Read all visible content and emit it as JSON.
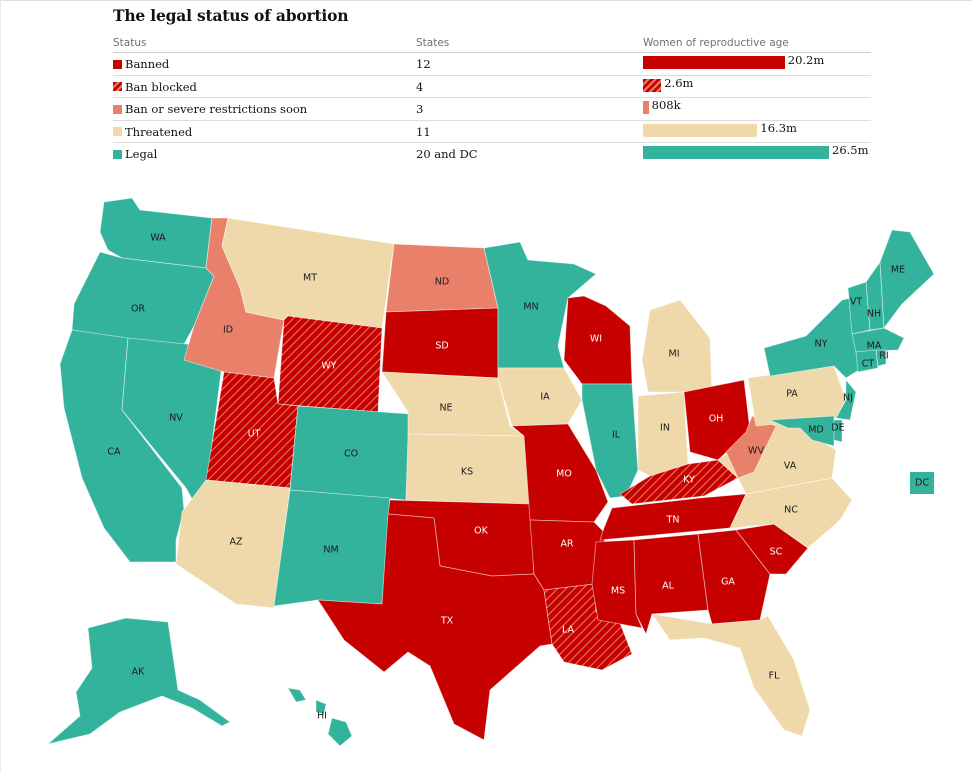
{
  "title": "The legal status of abortion",
  "table": {
    "headers": {
      "status": "Status",
      "states": "States",
      "women": "Women of reproductive age"
    },
    "rows": [
      {
        "status": "Banned",
        "states": "12",
        "women_label": "20.2m",
        "women_millions": 20.2,
        "color": "#c70000",
        "pattern": "solid"
      },
      {
        "status": "Ban blocked",
        "states": "4",
        "women_label": "2.6m",
        "women_millions": 2.6,
        "color": "#c70000",
        "pattern": "hatched"
      },
      {
        "status": "Ban or severe restrictions soon",
        "states": "3",
        "women_label": "808k",
        "women_millions": 0.808,
        "color": "#e8806a",
        "pattern": "solid"
      },
      {
        "status": "Threatened",
        "states": "11",
        "women_label": "16.3m",
        "women_millions": 16.3,
        "color": "#efd9ab",
        "pattern": "solid"
      },
      {
        "status": "Legal",
        "states": "20 and DC",
        "women_label": "26.5m",
        "women_millions": 26.5,
        "color": "#33b39c",
        "pattern": "solid"
      }
    ]
  },
  "states": {
    "WA": "legal",
    "OR": "legal",
    "CA": "legal",
    "NV": "legal",
    "CO": "legal",
    "NM": "legal",
    "MN": "legal",
    "IL": "legal",
    "NY": "legal",
    "NJ": "legal",
    "MD": "legal",
    "DE": "legal",
    "ME": "legal",
    "VT": "legal",
    "NH": "legal",
    "MA": "legal",
    "CT": "legal",
    "RI": "legal",
    "AK": "legal",
    "HI": "legal",
    "DC": "legal",
    "SD": "banned",
    "WI": "banned",
    "MO": "banned",
    "OK": "banned",
    "AR": "banned",
    "TX": "banned",
    "TN": "banned",
    "MS": "banned",
    "AL": "banned",
    "GA": "banned",
    "SC": "banned",
    "OH": "banned",
    "WY": "blocked",
    "UT": "blocked",
    "KY": "blocked",
    "LA": "blocked",
    "ID": "soon",
    "ND": "soon",
    "WV": "soon",
    "MT": "threatened",
    "NE": "threatened",
    "KS": "threatened",
    "IA": "threatened",
    "AZ": "threatened",
    "MI": "threatened",
    "IN": "threatened",
    "PA": "threatened",
    "VA": "threatened",
    "NC": "threatened",
    "FL": "threatened"
  },
  "colors": {
    "legal": "#33b39c",
    "banned": "#c70000",
    "blocked": "#c70000",
    "soon": "#e8806a",
    "threatened": "#efd9ab"
  }
}
